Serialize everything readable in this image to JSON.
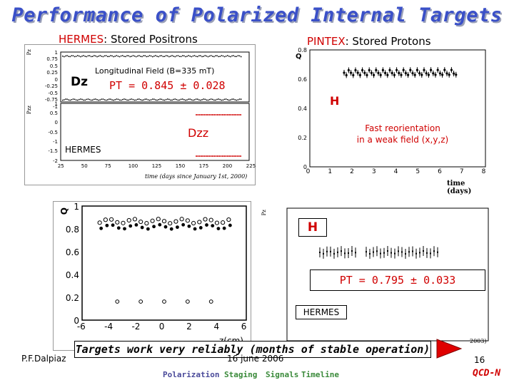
{
  "slide": {
    "title": "Performance of Polarized Internal Targets",
    "left_heading_a": "HERMES",
    "left_heading_b": ": Stored Positrons",
    "right_heading_a": "PINTEX",
    "right_heading_b": ": Stored Protons",
    "footer_message": "Targets work very reliably (months of stable operation)",
    "author": "P.F.Dalpiaz",
    "date": "16 june 2006",
    "page_number": "16",
    "logo_text": "QCD-N",
    "nav": [
      "Polarization",
      "Staging",
      "Signals",
      "Timeline"
    ],
    "colors": {
      "title": "#3a50c8",
      "accent_red": "#d00000",
      "nav_blue": "#4a4a9a",
      "nav_green": "#3a8a3a",
      "arrow_red": "#e00000"
    }
  },
  "hermes_plot": {
    "dz_label": "Dz",
    "dzz_label": "Dzz",
    "field_note": "Longitudinal Field (B=335 mT)",
    "pt_note": "PT = 0.845 ± 0.028",
    "hermes_label": "HERMES",
    "upper_ylabel": "Pz",
    "lower_ylabel": "Pzz",
    "upper_ticks": [
      "1",
      "0.75",
      "0.5",
      "0.25",
      "0",
      "-0.25",
      "-0.5",
      "-0.75",
      "-1"
    ],
    "lower_ticks": [
      "1",
      "0.5",
      "0",
      "-0.5",
      "-1",
      "-1.5",
      "-2"
    ],
    "x_ticks": [
      "25",
      "50",
      "75",
      "100",
      "125",
      "150",
      "175",
      "200",
      "225"
    ],
    "xlabel": "time (days since January 1st, 2000)"
  },
  "pintex_plot": {
    "ylabel": "Q",
    "h_label": "H",
    "note_line1": "Fast reorientation",
    "note_line2": "in a weak field (x,y,z)",
    "y_ticks": [
      "0.8",
      "0.6",
      "0.4",
      "0.2",
      "0"
    ],
    "x_ticks": [
      "0",
      "1",
      "2",
      "3",
      "4",
      "5",
      "6",
      "7",
      "8"
    ],
    "xlabel": "time (days)"
  },
  "zprofile_plot": {
    "ylabel": "Q",
    "y_ticks": [
      "1",
      "0.8",
      "0.6",
      "0.4",
      "0.2",
      "0"
    ],
    "x_ticks": [
      "-6",
      "-4",
      "-2",
      "0",
      "2",
      "4",
      "6"
    ],
    "xlabel": "z(cm)"
  },
  "hermes_h_plot": {
    "ylabel": "Pz",
    "h_label": "H",
    "pt_note": "PT = 0.795 ± 0.033",
    "hermes_label": "HERMES",
    "year_note": "2003)"
  }
}
